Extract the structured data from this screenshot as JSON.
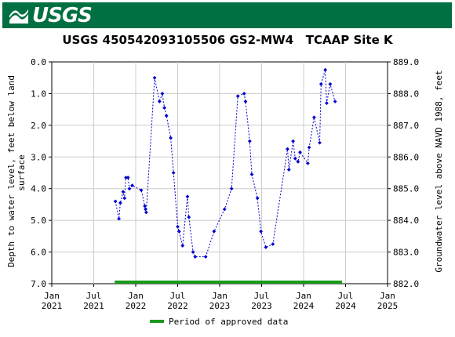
{
  "header": {
    "agency": "USGS"
  },
  "chart_data": {
    "type": "scatter",
    "title": "USGS 450542093105506 GS2-MW4   TCAAP Site K",
    "ylabel": "Depth to water level, feet below land surface",
    "y2label": "Groundwater level above NAVD 1988, feet",
    "ylim": [
      7.0,
      0.0
    ],
    "y2lim": [
      882.0,
      889.0
    ],
    "yticks": [
      "0.0",
      "1.0",
      "2.0",
      "3.0",
      "4.0",
      "5.0",
      "6.0",
      "7.0"
    ],
    "y2ticks": [
      "889.0",
      "888.0",
      "887.0",
      "886.0",
      "885.0",
      "884.0",
      "883.0",
      "882.0"
    ],
    "xticks": [
      {
        "label": "Jan",
        "year": "2021",
        "t": 0
      },
      {
        "label": "Jul",
        "year": "2021",
        "t": 6
      },
      {
        "label": "Jan",
        "year": "2022",
        "t": 12
      },
      {
        "label": "Jul",
        "year": "2022",
        "t": 18
      },
      {
        "label": "Jan",
        "year": "2023",
        "t": 24
      },
      {
        "label": "Jul",
        "year": "2023",
        "t": 30
      },
      {
        "label": "Jan",
        "year": "2024",
        "t": 36
      },
      {
        "label": "Jul",
        "year": "2024",
        "t": 42
      },
      {
        "label": "Jan",
        "year": "2025",
        "t": 48
      }
    ],
    "series": [
      {
        "color": "#0000cc",
        "points": [
          {
            "t": 9.1,
            "y": 4.4
          },
          {
            "t": 9.6,
            "y": 4.95
          },
          {
            "t": 9.8,
            "y": 4.45
          },
          {
            "t": 10.2,
            "y": 4.1
          },
          {
            "t": 10.4,
            "y": 4.3
          },
          {
            "t": 10.6,
            "y": 3.65
          },
          {
            "t": 10.9,
            "y": 3.65
          },
          {
            "t": 11.1,
            "y": 4.0
          },
          {
            "t": 11.5,
            "y": 3.9
          },
          {
            "t": 12.8,
            "y": 4.05
          },
          {
            "t": 13.3,
            "y": 4.55
          },
          {
            "t": 13.4,
            "y": 4.65
          },
          {
            "t": 13.5,
            "y": 4.75
          },
          {
            "t": 14.7,
            "y": 0.5
          },
          {
            "t": 15.4,
            "y": 1.25
          },
          {
            "t": 15.8,
            "y": 1.0
          },
          {
            "t": 16.1,
            "y": 1.45
          },
          {
            "t": 16.4,
            "y": 1.7
          },
          {
            "t": 17.0,
            "y": 2.4
          },
          {
            "t": 17.4,
            "y": 3.5
          },
          {
            "t": 18.0,
            "y": 5.2
          },
          {
            "t": 18.2,
            "y": 5.35
          },
          {
            "t": 18.7,
            "y": 5.8
          },
          {
            "t": 19.4,
            "y": 4.25
          },
          {
            "t": 19.6,
            "y": 4.9
          },
          {
            "t": 20.2,
            "y": 6.0
          },
          {
            "t": 20.5,
            "y": 6.15
          },
          {
            "t": 22.0,
            "y": 6.15
          },
          {
            "t": 23.2,
            "y": 5.35
          },
          {
            "t": 24.7,
            "y": 4.65
          },
          {
            "t": 25.7,
            "y": 4.0
          },
          {
            "t": 26.6,
            "y": 1.08
          },
          {
            "t": 27.5,
            "y": 1.0
          },
          {
            "t": 27.7,
            "y": 1.25
          },
          {
            "t": 28.3,
            "y": 2.5
          },
          {
            "t": 28.6,
            "y": 3.55
          },
          {
            "t": 29.4,
            "y": 4.3
          },
          {
            "t": 29.9,
            "y": 5.35
          },
          {
            "t": 30.6,
            "y": 5.85
          },
          {
            "t": 31.6,
            "y": 5.75
          },
          {
            "t": 33.7,
            "y": 2.75
          },
          {
            "t": 33.9,
            "y": 3.4
          },
          {
            "t": 34.5,
            "y": 2.5
          },
          {
            "t": 34.8,
            "y": 3.05
          },
          {
            "t": 35.2,
            "y": 3.15
          },
          {
            "t": 35.5,
            "y": 2.85
          },
          {
            "t": 36.6,
            "y": 3.2
          },
          {
            "t": 36.8,
            "y": 2.7
          },
          {
            "t": 37.5,
            "y": 1.75
          },
          {
            "t": 38.3,
            "y": 2.55
          },
          {
            "t": 38.5,
            "y": 0.7
          },
          {
            "t": 39.1,
            "y": 0.25
          },
          {
            "t": 39.3,
            "y": 1.3
          },
          {
            "t": 39.8,
            "y": 0.7
          },
          {
            "t": 40.5,
            "y": 1.25
          }
        ]
      }
    ],
    "approved_period": {
      "start": 9.0,
      "end": 41.5,
      "color": "#1a9a1a"
    },
    "legend": {
      "label": "Period of approved data",
      "placement": "bottom"
    },
    "grid": true
  }
}
